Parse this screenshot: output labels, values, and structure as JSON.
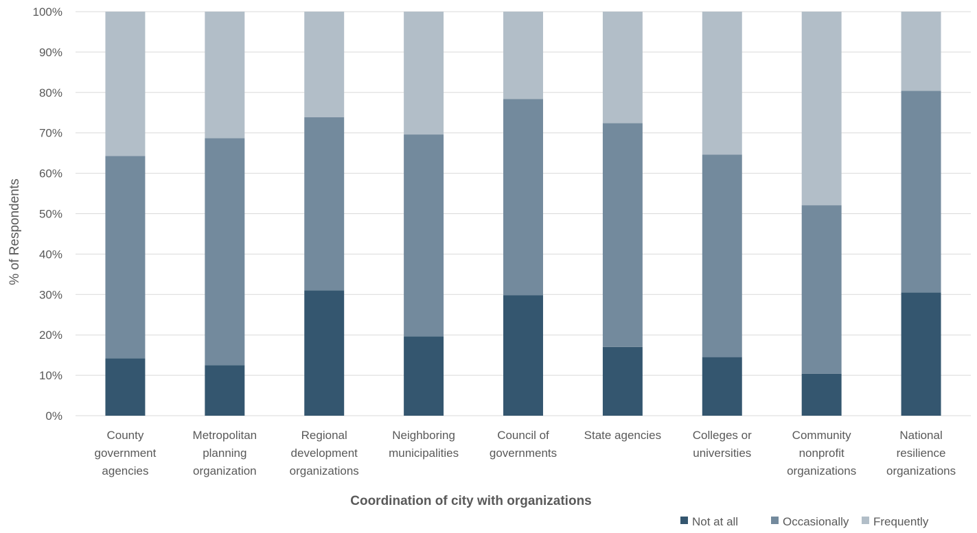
{
  "chart_data": {
    "type": "bar",
    "stacked": true,
    "percent": true,
    "title": "",
    "xlabel": "Coordination of city with organizations",
    "ylabel": "% of Respondents",
    "ylim": [
      0,
      100
    ],
    "yticks": [
      "0%",
      "10%",
      "20%",
      "30%",
      "40%",
      "50%",
      "60%",
      "70%",
      "80%",
      "90%",
      "100%"
    ],
    "grid": true,
    "legend_position": "bottom-right",
    "categories": [
      [
        "County",
        "government",
        "agencies"
      ],
      [
        "Metropolitan",
        "planning",
        "organization"
      ],
      [
        "Regional",
        "development",
        "organizations"
      ],
      [
        "Neighboring",
        "municipalities"
      ],
      [
        "Council of",
        "governments"
      ],
      [
        "State agencies"
      ],
      [
        "Colleges or",
        "universities"
      ],
      [
        "Community",
        "nonprofit",
        "organizations"
      ],
      [
        "National",
        "resilience",
        "organizations"
      ]
    ],
    "series": [
      {
        "name": "Not at all",
        "color": "#34566f",
        "values": [
          14.2,
          12.5,
          31.0,
          19.6,
          29.8,
          17.0,
          14.5,
          10.4,
          30.5
        ]
      },
      {
        "name": "Occasionally",
        "color": "#738a9d",
        "values": [
          50.1,
          56.2,
          42.9,
          50.0,
          48.6,
          55.4,
          50.1,
          41.7,
          49.9
        ]
      },
      {
        "name": "Frequently",
        "color": "#b2bec8",
        "values": [
          35.7,
          31.3,
          26.1,
          30.4,
          21.6,
          27.6,
          35.4,
          47.9,
          19.6
        ]
      }
    ]
  }
}
